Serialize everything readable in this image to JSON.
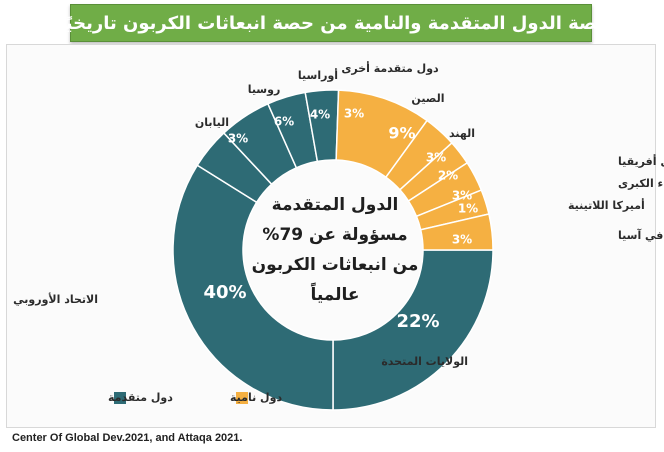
{
  "header": {
    "title": "حصة الدول المتقدمة والنامية من حصة انبعاثات الكربون تاريخيًا."
  },
  "chart_data": {
    "type": "pie",
    "style": "donut",
    "slices": [
      {
        "label": "الولايات المتحدة",
        "value": 22,
        "value_label": "22%",
        "group": "dev"
      },
      {
        "label": "الاتحاد الأوروبي",
        "value": 40,
        "value_label": "40%",
        "group": "dev"
      },
      {
        "label": "اليابان",
        "value": 3,
        "value_label": "3%",
        "group": "dev"
      },
      {
        "label": "روسيا",
        "value": 6,
        "value_label": "6%",
        "group": "dev"
      },
      {
        "label": "أوراسيا",
        "value": 4,
        "value_label": "4%",
        "group": "dev"
      },
      {
        "label": "دول متقدمة أخرى",
        "value": 3,
        "value_label": "3%",
        "group": "dev"
      },
      {
        "label": "الصين",
        "value": 9,
        "value_label": "9%",
        "group": "ing"
      },
      {
        "label": "الهند",
        "value": 3,
        "value_label": "3%",
        "group": "ing"
      },
      {
        "label": "الشرق الأوسط وشمال أفريقيا",
        "value": 2,
        "value_label": "2%",
        "group": "ing"
      },
      {
        "label": "أفريقيا جنوب الصحراء الكبرى",
        "value": 3,
        "value_label": "3%",
        "group": "ing"
      },
      {
        "label": "أميركا اللاتينية",
        "value": 1,
        "value_label": "1%",
        "group": "ing"
      },
      {
        "label": "دول نامية أخرى في آسيا",
        "value": 3,
        "value_label": "3%",
        "group": "ing"
      }
    ],
    "center_text": [
      "الدول المتقدمة",
      "مسؤولة عن 79%",
      "من انبعاثات الكربون",
      "عالمياً"
    ],
    "legend": [
      {
        "label": "دول متقدمة",
        "group": "dev"
      },
      {
        "label": "دول نامية",
        "group": "ing"
      }
    ],
    "colors": {
      "dev": "#2e6b75",
      "ing": "#f5b042",
      "separator": "#ffffff",
      "value_text": "#ffffff",
      "label_text": "#2b2b2b"
    }
  },
  "footer": {
    "source": "Center Of Global Dev.2021, and Attaqa 2021."
  }
}
